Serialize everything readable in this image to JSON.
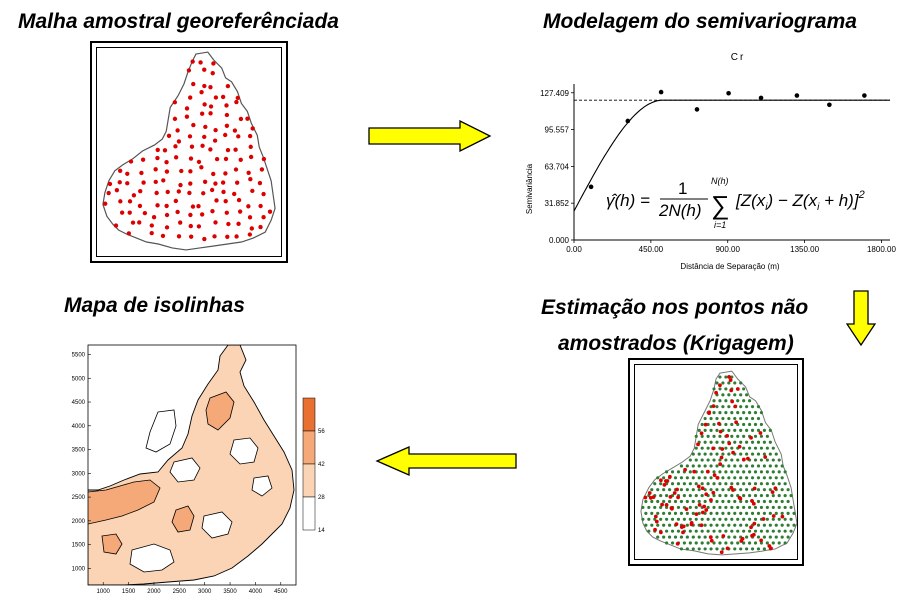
{
  "steps": {
    "sampling": {
      "title": "Malha amostral georeferênciada"
    },
    "variogram": {
      "title": "Modelagem do semivariograma"
    },
    "kriging": {
      "title_line1": "Estimação nos pontos não",
      "title_line2": "amostrados (Krigagem)"
    },
    "isolines": {
      "title": "Mapa de isolinhas"
    }
  },
  "chart_data": [
    {
      "type": "scatter",
      "title": "Cr",
      "xlabel": "Distância de Separação (m)",
      "ylabel": "Semivariância",
      "xlim": [
        0,
        1850
      ],
      "ylim": [
        0,
        135
      ],
      "x_ticks": [
        "0.00",
        "450.00",
        "900.00",
        "1350.00",
        "1800.00"
      ],
      "x_tick_values": [
        0,
        450,
        900,
        1350,
        1800
      ],
      "y_ticks": [
        "0.000",
        "31.852",
        "63.704",
        "95.557",
        "127.409"
      ],
      "y_tick_values": [
        0,
        31.852,
        63.704,
        95.557,
        127.409
      ],
      "points": [
        {
          "x": 100,
          "y": 46
        },
        {
          "x": 315,
          "y": 103
        },
        {
          "x": 510,
          "y": 128
        },
        {
          "x": 720,
          "y": 113
        },
        {
          "x": 905,
          "y": 127
        },
        {
          "x": 1095,
          "y": 123
        },
        {
          "x": 1305,
          "y": 125
        },
        {
          "x": 1495,
          "y": 117
        },
        {
          "x": 1700,
          "y": 125
        }
      ],
      "model": {
        "nugget": 25,
        "sill": 121,
        "range": 520
      },
      "sill_line": 121,
      "formula": "γ̂(h) = 1/(2N(h)) Σ_{i=1}^{N(h)} [Z(x_i) − Z(x_i + h)]²"
    },
    {
      "type": "heatmap",
      "x_ticks": [
        "1000",
        "1500",
        "2000",
        "2500",
        "3000",
        "3500",
        "4000",
        "4500"
      ],
      "x_tick_values": [
        1000,
        1500,
        2000,
        2500,
        3000,
        3500,
        4000,
        4500
      ],
      "y_ticks": [
        "1000",
        "1500",
        "2000",
        "2500",
        "3000",
        "3500",
        "4000",
        "4500",
        "5000",
        "5500"
      ],
      "y_tick_values": [
        1000,
        1500,
        2000,
        2500,
        3000,
        3500,
        4000,
        4500,
        5000,
        5500
      ],
      "xlim": [
        700,
        4800
      ],
      "ylim": [
        650,
        5700
      ],
      "legend_ticks": [
        "14",
        "28",
        "42",
        "56"
      ],
      "legend_colors": [
        "#ffffff",
        "#fad4b4",
        "#f5a878",
        "#e87030"
      ]
    }
  ],
  "colors": {
    "sample_point": "#dd0000",
    "estimated_point": "#2e7d32",
    "arrow_fill": "#ffff00",
    "boundary": "#555555"
  }
}
